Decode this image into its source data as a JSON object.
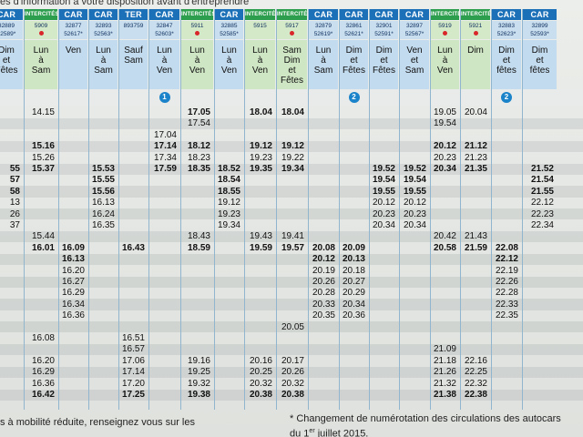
{
  "intro_text": "es d'information à votre disposition avant d'entreprendre",
  "colors": {
    "car": "#1b70b8",
    "intercites": "#2d9d4e",
    "header_blue": "#c3dbee",
    "header_green": "#cfe6c4",
    "badge": "#1b83c9",
    "dot": "#d9262b"
  },
  "columns": [
    {
      "type": "CAR",
      "numbers": [
        "32889",
        "52589*"
      ],
      "days": "Dim\net\nFêtes",
      "dot": false
    },
    {
      "type": "INTERCITÉS",
      "numbers": [
        "5909"
      ],
      "days": "Lun\nà\nSam",
      "dot": true
    },
    {
      "type": "CAR",
      "numbers": [
        "32877",
        "52617*"
      ],
      "days": "Ven",
      "dot": false
    },
    {
      "type": "CAR",
      "numbers": [
        "32893",
        "52563*"
      ],
      "days": "Lun\nà\nSam",
      "dot": false
    },
    {
      "type": "TER",
      "numbers": [
        "893759"
      ],
      "days": "Sauf\nSam",
      "dot": false
    },
    {
      "type": "CAR",
      "numbers": [
        "32847",
        "52603*"
      ],
      "days": "Lun\nà\nVen",
      "dot": false,
      "note": "1"
    },
    {
      "type": "INTERCITÉS",
      "numbers": [
        "5911"
      ],
      "days": "Lun\nà\nVen",
      "dot": true
    },
    {
      "type": "CAR",
      "numbers": [
        "32885",
        "52585*"
      ],
      "days": "Lun\nà\nVen",
      "dot": false
    },
    {
      "type": "INTERCITÉS",
      "numbers": [
        "5915"
      ],
      "days": "Lun\nà\nVen",
      "dot": false
    },
    {
      "type": "INTERCITÉS",
      "numbers": [
        "5917"
      ],
      "days": "Sam\nDim\net\nFêtes",
      "dot": true
    },
    {
      "type": "CAR",
      "numbers": [
        "32879",
        "52619*"
      ],
      "days": "Lun\nà\nSam",
      "dot": false
    },
    {
      "type": "CAR",
      "numbers": [
        "32861",
        "52621*"
      ],
      "days": "Dim\net\nFêtes",
      "dot": false,
      "note": "2"
    },
    {
      "type": "CAR",
      "numbers": [
        "32901",
        "52591*"
      ],
      "days": "Dim\net\nFêtes",
      "dot": false
    },
    {
      "type": "CAR",
      "numbers": [
        "32897",
        "52567*"
      ],
      "days": "Ven\net\nSam",
      "dot": false
    },
    {
      "type": "INTERCITÉS",
      "numbers": [
        "5919"
      ],
      "days": "Lun\nà\nVen",
      "dot": true
    },
    {
      "type": "INTERCITÉS",
      "numbers": [
        "5921"
      ],
      "days": "Dim",
      "dot": true
    },
    {
      "type": "CAR",
      "numbers": [
        "32883",
        "52623*"
      ],
      "days": "Dim\net\nfêtes",
      "dot": false,
      "note": "2"
    },
    {
      "type": "CAR",
      "numbers": [
        "32899",
        "52593*"
      ],
      "days": "Dim\net\nfêtes",
      "dot": false
    }
  ],
  "rows": [
    [
      "",
      "14.15",
      "",
      "",
      "",
      "",
      "17.05",
      "",
      "18.04",
      "18.04",
      "",
      "",
      "",
      "",
      "19.05",
      "20.04",
      "",
      ""
    ],
    [
      "",
      "",
      "",
      "",
      "",
      "",
      "17.54",
      "",
      "",
      "",
      "",
      "",
      "",
      "",
      "19.54",
      "",
      "",
      ""
    ],
    [
      "",
      "",
      "",
      "",
      "",
      "17.04",
      "",
      "",
      "",
      "",
      "",
      "",
      "",
      "",
      "",
      "",
      "",
      ""
    ],
    [
      "",
      "15.16",
      "",
      "",
      "",
      "17.14",
      "18.12",
      "",
      "19.12",
      "19.12",
      "",
      "",
      "",
      "",
      "20.12",
      "21.12",
      "",
      ""
    ],
    [
      "",
      "15.26",
      "",
      "",
      "",
      "17.34",
      "18.23",
      "",
      "19.23",
      "19.22",
      "",
      "",
      "",
      "",
      "20.23",
      "21.23",
      "",
      ""
    ],
    [
      "55",
      "15.37",
      "",
      "15.53",
      "",
      "17.59",
      "18.35",
      "18.52",
      "19.35",
      "19.34",
      "",
      "",
      "19.52",
      "19.52",
      "20.34",
      "21.35",
      "",
      "21.52"
    ],
    [
      "57",
      "",
      "",
      "15.55",
      "",
      "",
      "",
      "18.54",
      "",
      "",
      "",
      "",
      "19.54",
      "19.54",
      "",
      "",
      "",
      "21.54"
    ],
    [
      "58",
      "",
      "",
      "15.56",
      "",
      "",
      "",
      "18.55",
      "",
      "",
      "",
      "",
      "19.55",
      "19.55",
      "",
      "",
      "",
      "21.55"
    ],
    [
      "13",
      "",
      "",
      "16.13",
      "",
      "",
      "",
      "19.12",
      "",
      "",
      "",
      "",
      "20.12",
      "20.12",
      "",
      "",
      "",
      "22.12"
    ],
    [
      "26",
      "",
      "",
      "16.24",
      "",
      "",
      "",
      "19.23",
      "",
      "",
      "",
      "",
      "20.23",
      "20.23",
      "",
      "",
      "",
      "22.23"
    ],
    [
      "37",
      "",
      "",
      "16.35",
      "",
      "",
      "",
      "19.34",
      "",
      "",
      "",
      "",
      "20.34",
      "20.34",
      "",
      "",
      "",
      "22.34"
    ],
    [
      "",
      "15.44",
      "",
      "",
      "",
      "",
      "18.43",
      "",
      "19.43",
      "19.41",
      "",
      "",
      "",
      "",
      "20.42",
      "21.43",
      "",
      ""
    ],
    [
      "",
      "16.01",
      "16.09",
      "",
      "16.43",
      "",
      "18.59",
      "",
      "19.59",
      "19.57",
      "20.08",
      "20.09",
      "",
      "",
      "20.58",
      "21.59",
      "22.08",
      ""
    ],
    [
      "",
      "",
      "16.13",
      "",
      "",
      "",
      "",
      "",
      "",
      "",
      "20.12",
      "20.13",
      "",
      "",
      "",
      "",
      "22.12",
      ""
    ],
    [
      "",
      "",
      "16.20",
      "",
      "",
      "",
      "",
      "",
      "",
      "",
      "20.19",
      "20.18",
      "",
      "",
      "",
      "",
      "22.19",
      ""
    ],
    [
      "",
      "",
      "16.27",
      "",
      "",
      "",
      "",
      "",
      "",
      "",
      "20.26",
      "20.27",
      "",
      "",
      "",
      "",
      "22.26",
      ""
    ],
    [
      "",
      "",
      "16.29",
      "",
      "",
      "",
      "",
      "",
      "",
      "",
      "20.28",
      "20.29",
      "",
      "",
      "",
      "",
      "22.28",
      ""
    ],
    [
      "",
      "",
      "16.34",
      "",
      "",
      "",
      "",
      "",
      "",
      "",
      "20.33",
      "20.34",
      "",
      "",
      "",
      "",
      "22.33",
      ""
    ],
    [
      "",
      "",
      "16.36",
      "",
      "",
      "",
      "",
      "",
      "",
      "",
      "20.35",
      "20.36",
      "",
      "",
      "",
      "",
      "22.35",
      ""
    ],
    [
      "",
      "",
      "",
      "",
      "",
      "",
      "",
      "",
      "",
      "20.05",
      "",
      "",
      "",
      "",
      "",
      "",
      "",
      ""
    ],
    [
      "",
      "16.08",
      "",
      "",
      "16.51",
      "",
      "",
      "",
      "",
      "",
      "",
      "",
      "",
      "",
      "",
      "",
      "",
      ""
    ],
    [
      "",
      "",
      "",
      "",
      "16.57",
      "",
      "",
      "",
      "",
      "",
      "",
      "",
      "",
      "",
      "21.09",
      "",
      "",
      ""
    ],
    [
      "",
      "16.20",
      "",
      "",
      "17.06",
      "",
      "19.16",
      "",
      "20.16",
      "20.17",
      "",
      "",
      "",
      "",
      "21.18",
      "22.16",
      "",
      ""
    ],
    [
      "",
      "16.29",
      "",
      "",
      "17.14",
      "",
      "19.25",
      "",
      "20.25",
      "20.26",
      "",
      "",
      "",
      "",
      "21.26",
      "22.25",
      "",
      ""
    ],
    [
      "",
      "16.36",
      "",
      "",
      "17.20",
      "",
      "19.32",
      "",
      "20.32",
      "20.32",
      "",
      "",
      "",
      "",
      "21.32",
      "22.32",
      "",
      ""
    ],
    [
      "",
      "16.42",
      "",
      "",
      "17.25",
      "",
      "19.38",
      "",
      "20.38",
      "20.38",
      "",
      "",
      "",
      "",
      "21.38",
      "22.38",
      "",
      ""
    ]
  ],
  "bold_rows": [
    5,
    12,
    25
  ],
  "bold_cells": [
    [
      0,
      6
    ],
    [
      0,
      8
    ],
    [
      0,
      9
    ],
    [
      3,
      1
    ],
    [
      3,
      5
    ],
    [
      3,
      6
    ],
    [
      3,
      8
    ],
    [
      3,
      9
    ],
    [
      3,
      14
    ],
    [
      3,
      15
    ],
    [
      5,
      5
    ],
    [
      5,
      6
    ],
    [
      5,
      8
    ],
    [
      5,
      9
    ],
    [
      5,
      14
    ],
    [
      5,
      15
    ],
    [
      6,
      0
    ],
    [
      6,
      3
    ],
    [
      6,
      7
    ],
    [
      6,
      12
    ],
    [
      6,
      13
    ],
    [
      6,
      17
    ],
    [
      7,
      0
    ],
    [
      7,
      3
    ],
    [
      7,
      7
    ],
    [
      7,
      12
    ],
    [
      7,
      13
    ],
    [
      7,
      17
    ],
    [
      13,
      2
    ],
    [
      13,
      10
    ],
    [
      13,
      11
    ],
    [
      13,
      16
    ]
  ],
  "footer": {
    "left": "s à mobilité réduite, renseignez vous sur les",
    "note_line1": "* Changement de numérotation des circulations des autocars",
    "note_line2_pre": "du 1",
    "note_line2_sup": "er",
    "note_line2_post": " juillet 2015."
  }
}
